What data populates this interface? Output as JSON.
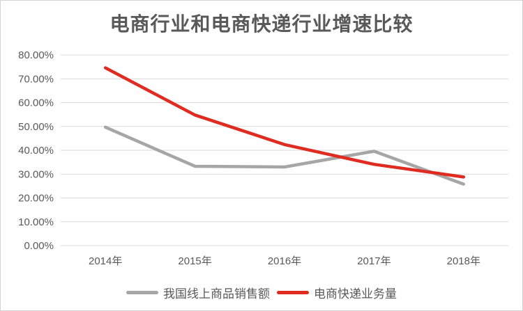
{
  "title": "电商行业和电商快递行业增速比较",
  "colors": {
    "text": "#595959",
    "grid": "#d9d9d9",
    "frame_border": "#d3d3d3",
    "background": "#ffffff",
    "series_gray": "#a6a6a6",
    "series_red": "#e02b20"
  },
  "chart_data": {
    "type": "line",
    "title": "电商行业和电商快递行业增速比较",
    "categories": [
      "2014年",
      "2015年",
      "2016年",
      "2017年",
      "2018年"
    ],
    "series": [
      {
        "name": "我国线上商品销售额",
        "color": "#a6a6a6",
        "values": [
          49.7,
          33.3,
          33.0,
          39.6,
          25.8
        ]
      },
      {
        "name": "电商快递业务量",
        "color": "#e02b20",
        "values": [
          74.6,
          54.8,
          42.4,
          34.1,
          28.8
        ]
      }
    ],
    "xlabel": "",
    "ylabel": "",
    "ylim": [
      0,
      80
    ],
    "ytick_step": 10,
    "ytick_labels": [
      "0.00%",
      "10.00%",
      "20.00%",
      "30.00%",
      "40.00%",
      "50.00%",
      "60.00%",
      "70.00%",
      "80.00%"
    ],
    "grid": "horizontal",
    "legend_position": "bottom"
  }
}
